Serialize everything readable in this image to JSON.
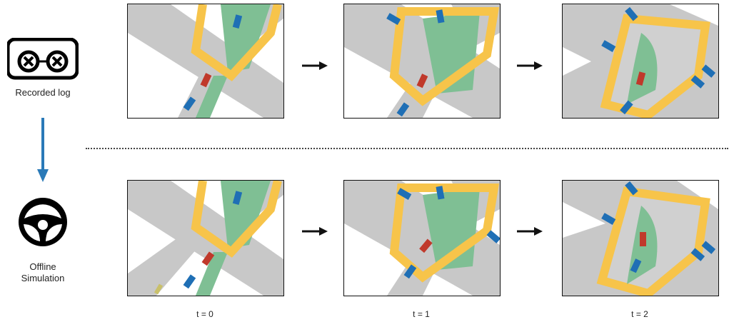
{
  "left_column": {
    "recorded_label": "Recorded log",
    "offline_label_line1": "Offline",
    "offline_label_line2": "Simulation"
  },
  "time_labels": [
    "t = 0",
    "t = 1",
    "t = 2"
  ],
  "colors": {
    "road": "#c8c8c8",
    "lane_green": "#7fbf94",
    "boundary_yellow": "#f7c44a",
    "ego_red": "#c0392b",
    "agent_blue": "#1f6fb5",
    "arrow_blue": "#2a7ab8"
  },
  "icons": {
    "recorded": "cassette-tape-icon",
    "offline": "steering-wheel-icon"
  }
}
